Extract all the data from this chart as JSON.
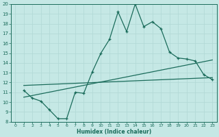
{
  "xlabel": "Humidex (Indice chaleur)",
  "xlim": [
    -0.5,
    23.5
  ],
  "ylim": [
    8,
    20
  ],
  "xticks": [
    0,
    1,
    2,
    3,
    4,
    5,
    6,
    7,
    8,
    9,
    10,
    11,
    12,
    13,
    14,
    15,
    16,
    17,
    18,
    19,
    20,
    21,
    22,
    23
  ],
  "yticks": [
    8,
    9,
    10,
    11,
    12,
    13,
    14,
    15,
    16,
    17,
    18,
    19,
    20
  ],
  "bg_color": "#c5e8e5",
  "line_color": "#1a6b5a",
  "grid_color": "#b0d8d5",
  "series1_x": [
    1,
    2,
    3,
    4,
    5,
    6,
    7,
    8,
    9,
    10,
    11,
    12,
    13,
    14,
    15,
    16,
    17,
    18,
    19,
    20,
    21,
    22,
    23
  ],
  "series1_y": [
    11.2,
    10.4,
    10.1,
    9.2,
    8.3,
    8.3,
    11.0,
    10.9,
    13.1,
    15.0,
    16.4,
    19.2,
    17.2,
    20.0,
    17.7,
    18.2,
    17.5,
    15.1,
    14.5,
    14.4,
    14.2,
    12.8,
    12.3
  ],
  "series2_x": [
    1,
    23
  ],
  "series2_y": [
    10.5,
    14.3
  ],
  "series3_x": [
    1,
    23
  ],
  "series3_y": [
    11.7,
    12.5
  ],
  "figsize": [
    3.2,
    2.0
  ],
  "dpi": 100
}
